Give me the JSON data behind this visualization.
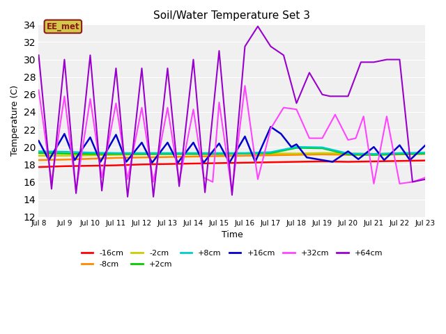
{
  "title": "Soil/Water Temperature Set 3",
  "xlabel": "Time",
  "ylabel": "Temperature (C)",
  "ylim": [
    12,
    34
  ],
  "yticks": [
    12,
    14,
    16,
    18,
    20,
    22,
    24,
    26,
    28,
    30,
    32,
    34
  ],
  "bg_color": "#e8e8e8",
  "plot_bg": "#f0f0f0",
  "annotation_text": "EE_met",
  "annotation_bg": "#d4c84a",
  "annotation_border": "#8b1a1a",
  "series_colors": {
    "-16cm": "#ff0000",
    "-8cm": "#ff8800",
    "-2cm": "#cccc00",
    "+2cm": "#00cc00",
    "+8cm": "#00cccc",
    "+16cm": "#0000cc",
    "+32cm": "#ff44ff",
    "+64cm": "#9900cc"
  },
  "series_lw": {
    "-16cm": 1.8,
    "-8cm": 1.8,
    "-2cm": 1.8,
    "+2cm": 1.8,
    "+8cm": 1.8,
    "+16cm": 1.8,
    "+32cm": 1.5,
    "+64cm": 1.5
  },
  "x_start": 8,
  "x_end": 23,
  "x_ticks": [
    8,
    9,
    10,
    11,
    12,
    13,
    14,
    15,
    16,
    17,
    18,
    19,
    20,
    21,
    22,
    23
  ],
  "smooth_daily": {
    "-16cm": [
      17.7,
      17.8,
      17.85,
      17.9,
      18.0,
      18.05,
      18.1,
      18.15,
      18.2,
      18.25,
      18.3,
      18.35,
      18.3,
      18.35,
      18.4,
      18.45
    ],
    "-8cm": [
      18.5,
      18.55,
      18.65,
      18.75,
      18.8,
      18.85,
      18.9,
      18.95,
      19.0,
      19.05,
      19.1,
      19.15,
      19.1,
      19.1,
      19.15,
      19.2
    ],
    "-2cm": [
      19.0,
      19.0,
      19.05,
      19.1,
      19.15,
      19.2,
      19.2,
      19.2,
      19.25,
      19.25,
      19.25,
      19.3,
      19.25,
      19.2,
      19.25,
      19.3
    ],
    "+2cm": [
      19.3,
      19.25,
      19.2,
      19.2,
      19.2,
      19.2,
      19.2,
      19.2,
      19.25,
      19.3,
      19.9,
      19.85,
      19.15,
      19.1,
      19.2,
      19.25
    ],
    "+8cm": [
      19.5,
      19.45,
      19.35,
      19.3,
      19.3,
      19.3,
      19.3,
      19.3,
      19.3,
      19.4,
      20.0,
      19.95,
      19.25,
      19.2,
      19.3,
      19.35
    ]
  },
  "osc_16cm_x": [
    8.0,
    8.4,
    9.0,
    9.4,
    10.0,
    10.4,
    11.0,
    11.4,
    12.0,
    12.4,
    13.0,
    13.4,
    14.0,
    14.4,
    15.0,
    15.4,
    16.0,
    16.4,
    17.0,
    17.4,
    17.8,
    18.0,
    18.4,
    19.0,
    19.4,
    20.0,
    20.4,
    21.0,
    21.4,
    22.0,
    22.4,
    23.0
  ],
  "osc_16cm_y": [
    20.7,
    18.5,
    21.5,
    18.5,
    21.1,
    18.3,
    21.4,
    18.3,
    20.5,
    18.2,
    20.5,
    18.2,
    20.5,
    18.2,
    20.4,
    18.2,
    21.2,
    18.3,
    22.3,
    21.5,
    20.0,
    20.3,
    18.8,
    18.5,
    18.3,
    19.5,
    18.6,
    20.0,
    18.5,
    20.2,
    18.5,
    20.2
  ],
  "osc_32cm_x": [
    8.0,
    8.5,
    9.0,
    9.45,
    10.0,
    10.45,
    11.0,
    11.45,
    12.0,
    12.45,
    13.0,
    13.45,
    14.0,
    14.4,
    14.75,
    15.0,
    15.5,
    16.0,
    16.5,
    17.0,
    17.5,
    18.0,
    18.5,
    19.0,
    19.5,
    20.0,
    20.3,
    20.6,
    21.0,
    21.5,
    22.0,
    22.5,
    23.0
  ],
  "osc_32cm_y": [
    26.5,
    16.0,
    25.8,
    15.0,
    25.5,
    16.5,
    25.0,
    16.3,
    24.5,
    16.0,
    24.5,
    16.0,
    24.3,
    16.5,
    16.0,
    25.1,
    14.8,
    27.0,
    16.3,
    22.1,
    24.5,
    24.3,
    21.0,
    21.0,
    23.7,
    20.8,
    21.0,
    23.5,
    15.8,
    23.5,
    15.8,
    16.0,
    16.5
  ],
  "osc_64cm_x": [
    8.0,
    8.5,
    9.0,
    9.45,
    10.0,
    10.45,
    11.0,
    11.45,
    12.0,
    12.45,
    13.0,
    13.45,
    14.0,
    14.45,
    15.0,
    15.5,
    16.0,
    16.5,
    17.0,
    17.5,
    18.0,
    18.5,
    19.0,
    19.3,
    19.7,
    20.0,
    20.5,
    21.0,
    21.5,
    22.0,
    22.5,
    23.0
  ],
  "osc_64cm_y": [
    30.5,
    15.2,
    30.0,
    14.7,
    30.5,
    15.0,
    29.0,
    14.3,
    29.0,
    14.3,
    29.0,
    15.5,
    30.0,
    14.8,
    31.0,
    14.5,
    31.5,
    33.8,
    31.5,
    30.5,
    25.0,
    28.5,
    26.0,
    25.8,
    25.8,
    25.8,
    29.7,
    29.7,
    30.0,
    30.0,
    16.0,
    16.3
  ]
}
